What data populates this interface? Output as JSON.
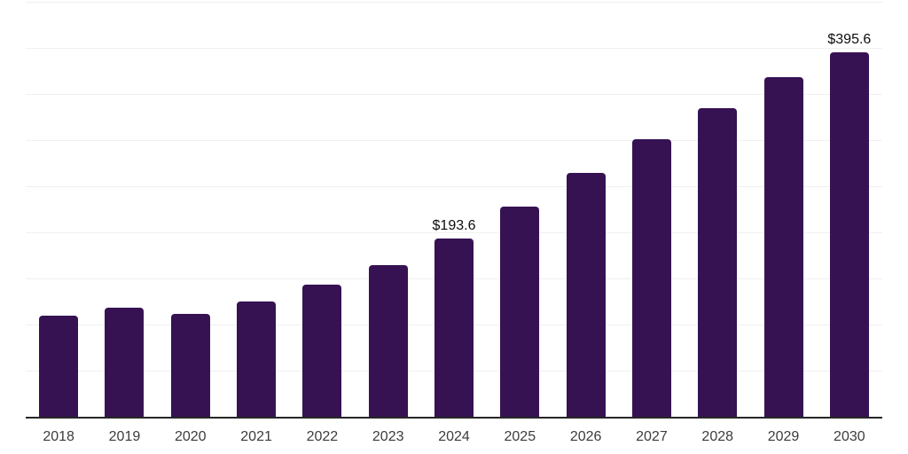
{
  "chart_data": {
    "type": "bar",
    "title": "",
    "xlabel": "",
    "ylabel": "",
    "categories": [
      "2018",
      "2019",
      "2020",
      "2021",
      "2022",
      "2023",
      "2024",
      "2025",
      "2026",
      "2027",
      "2028",
      "2029",
      "2030"
    ],
    "values": [
      110.0,
      117.9,
      111.1,
      124.6,
      142.8,
      164.7,
      193.6,
      227.8,
      264.1,
      300.6,
      334.8,
      368.2,
      395.6
    ],
    "bar_labels": [
      "",
      "",
      "",
      "",
      "",
      "",
      "$193.6",
      "",
      "",
      "",
      "",
      "",
      "$395.6"
    ],
    "currency_prefix": "$",
    "ylim": [
      0,
      450
    ],
    "gridline_interval": 50,
    "grid": true,
    "y_axis_tick_labels_visible": false,
    "legend": "none",
    "style": {
      "bar_color": "#361253",
      "background_color": "#ffffff",
      "gridline_color": "#f0f0f0",
      "axis_line_color": "#262626",
      "tick_label_color": "#3c3c3c",
      "data_label_color": "#0d0d0d"
    }
  }
}
